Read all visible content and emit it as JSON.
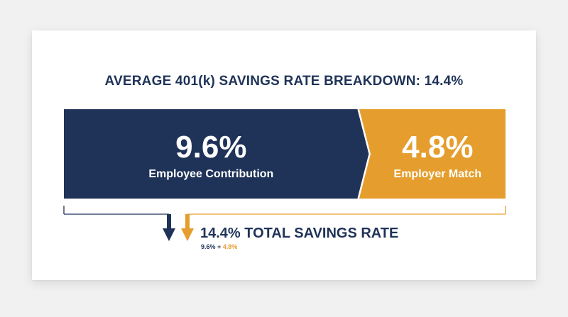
{
  "colors": {
    "employee": "#1f3358",
    "employer": "#e59e2e",
    "background": "#ffffff"
  },
  "chart_data": {
    "type": "bar",
    "orientation": "horizontal-stacked",
    "title": "AVERAGE 401(k) SAVINGS RATE BREAKDOWN: 14.4%",
    "total": 14.4,
    "series": [
      {
        "name": "Employee Contribution",
        "value": 9.6,
        "label": "9.6%",
        "color": "#1f3358"
      },
      {
        "name": "Employer Match",
        "value": 4.8,
        "label": "4.8%",
        "color": "#e59e2e"
      }
    ],
    "total_label": "14.4% TOTAL SAVINGS RATE",
    "formula": {
      "employee_part": "9.6%",
      "operator": " + ",
      "employer_part": "4.8%"
    },
    "legend": "none",
    "grid": false
  }
}
